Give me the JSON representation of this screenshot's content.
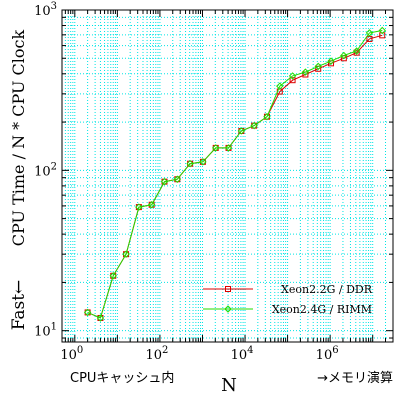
{
  "chart_data": {
    "type": "line",
    "title": "",
    "xlabel": "N",
    "ylabel": "CPU Time / N * CPU Clock",
    "ylabel_prefix": "Fast←",
    "x_note_left": "CPUキャッシュ内",
    "x_note_right": "→メモリ演算",
    "x_scale": "log",
    "y_scale": "log",
    "xlim": [
      0.5,
      30000000
    ],
    "ylim": [
      8.5,
      1000
    ],
    "grid": true,
    "grid_color": "#00e5e5",
    "legend_position": "bottom-right",
    "x_ticks": [
      {
        "value": 1,
        "base": "10",
        "exp": "0"
      },
      {
        "value": 100,
        "base": "10",
        "exp": "2"
      },
      {
        "value": 10000,
        "base": "10",
        "exp": "4"
      },
      {
        "value": 1000000,
        "base": "10",
        "exp": "6"
      }
    ],
    "y_ticks": [
      {
        "value": 10,
        "base": "10",
        "exp": "1"
      },
      {
        "value": 100,
        "base": "10",
        "exp": "2"
      },
      {
        "value": 1000,
        "base": "10",
        "exp": "3"
      }
    ],
    "series": [
      {
        "name": "Xeon2.2G / DDR",
        "color": "#dd0000",
        "marker": "square",
        "points": [
          [
            2,
            13
          ],
          [
            4,
            12
          ],
          [
            8,
            22
          ],
          [
            16,
            30
          ],
          [
            32,
            59
          ],
          [
            64,
            61
          ],
          [
            128,
            85
          ],
          [
            256,
            88
          ],
          [
            512,
            110
          ],
          [
            1024,
            113
          ],
          [
            2048,
            138
          ],
          [
            4096,
            138
          ],
          [
            8192,
            176
          ],
          [
            16384,
            190
          ],
          [
            32768,
            216
          ],
          [
            65536,
            310
          ],
          [
            131072,
            365
          ],
          [
            262144,
            396
          ],
          [
            524288,
            430
          ],
          [
            1048576,
            465
          ],
          [
            2097152,
            500
          ],
          [
            4194304,
            542
          ],
          [
            8388608,
            660
          ],
          [
            16777216,
            695
          ]
        ]
      },
      {
        "name": "Xeon2.4G / RIMM",
        "color": "#22dd00",
        "marker": "diamond",
        "points": [
          [
            2,
            13
          ],
          [
            4,
            12
          ],
          [
            8,
            22
          ],
          [
            16,
            30
          ],
          [
            32,
            59
          ],
          [
            64,
            61
          ],
          [
            128,
            85
          ],
          [
            256,
            88
          ],
          [
            512,
            110
          ],
          [
            1024,
            113
          ],
          [
            2048,
            138
          ],
          [
            4096,
            138
          ],
          [
            8192,
            176
          ],
          [
            16384,
            190
          ],
          [
            32768,
            216
          ],
          [
            65536,
            335
          ],
          [
            131072,
            388
          ],
          [
            262144,
            410
          ],
          [
            524288,
            445
          ],
          [
            1048576,
            480
          ],
          [
            2097152,
            520
          ],
          [
            4194304,
            555
          ],
          [
            8388608,
            720
          ],
          [
            16777216,
            745
          ]
        ]
      }
    ]
  }
}
